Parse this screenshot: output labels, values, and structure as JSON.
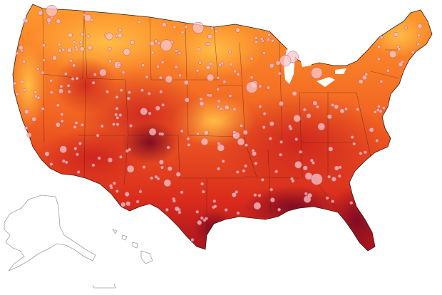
{
  "map": {
    "kind": "choropleth-heat-with-station-markers",
    "region": "contiguous-united-states-with-alaska-hawaii-outlines",
    "color_ramp": [
      "#ffbf47",
      "#ff9a2e",
      "#f26422",
      "#d92b1c",
      "#a8141e",
      "#7c0a23"
    ],
    "marker_fill": "#f7c7cf",
    "marker_stroke": "#c9505f",
    "outline_color": "#3a1a12",
    "inset_outline_color": "#9aa0a6",
    "background": "#ffffff"
  }
}
